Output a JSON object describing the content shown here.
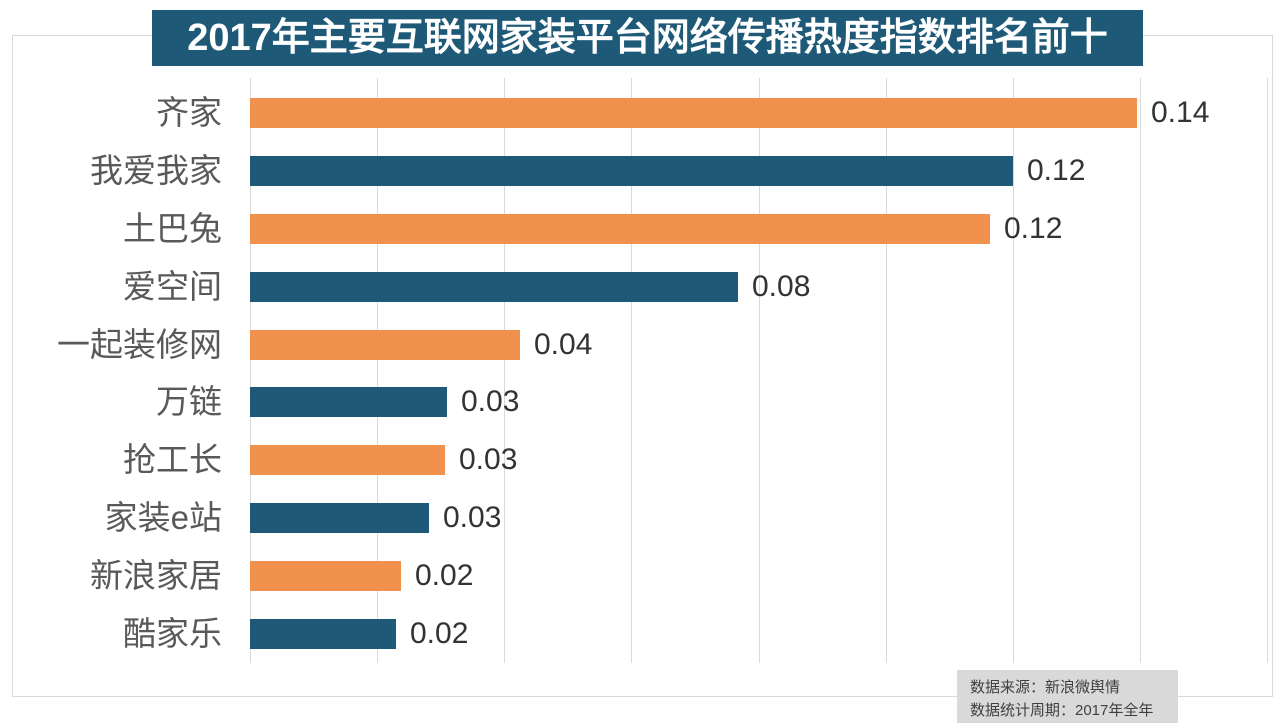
{
  "title": {
    "text": "2017年主要互联网家装平台网络传播热度指数排名前十"
  },
  "source_note": {
    "line1": "数据来源：新浪微舆情",
    "line2": "数据统计周期：2017年全年"
  },
  "chart_data": {
    "type": "bar",
    "orientation": "horizontal",
    "title": "2017年主要互联网家装平台网络传播热度指数排名前十",
    "categories": [
      "齐家",
      "我爱我家",
      "土巴兔",
      "爱空间",
      "一起装修网",
      "万链",
      "抢工长",
      "家装e站",
      "新浪家居",
      "酷家乐"
    ],
    "values": [
      0.14,
      0.12,
      0.12,
      0.08,
      0.04,
      0.03,
      0.03,
      0.03,
      0.02,
      0.02
    ],
    "value_labels": [
      "0.14",
      "0.12",
      "0.12",
      "0.08",
      "0.04",
      "0.03",
      "0.03",
      "0.03",
      "0.02",
      "0.02"
    ],
    "values_precise": [
      0.1395,
      0.1201,
      0.1164,
      0.0767,
      0.0424,
      0.031,
      0.0306,
      0.0282,
      0.0238,
      0.0229
    ],
    "xlabel": "",
    "ylabel": "",
    "xlim": [
      0,
      0.16
    ],
    "grid_step": 0.02,
    "gridlines": "vertical",
    "legend": "none",
    "data_labels": "outside-end",
    "bar_palette_alternating": [
      "#F0924D",
      "#1E5A78"
    ],
    "colors": {
      "orange_bar": "#F0924D",
      "blue_bar": "#1E5A78",
      "title_bg": "#1E5A78",
      "title_text": "#FFFFFF",
      "gridline": "#D9D9D9",
      "frame_border": "#D9D9D9",
      "category_label": "#595959",
      "value_label": "#333333",
      "source_bg": "#D9D9D9",
      "source_text": "#404040"
    }
  }
}
